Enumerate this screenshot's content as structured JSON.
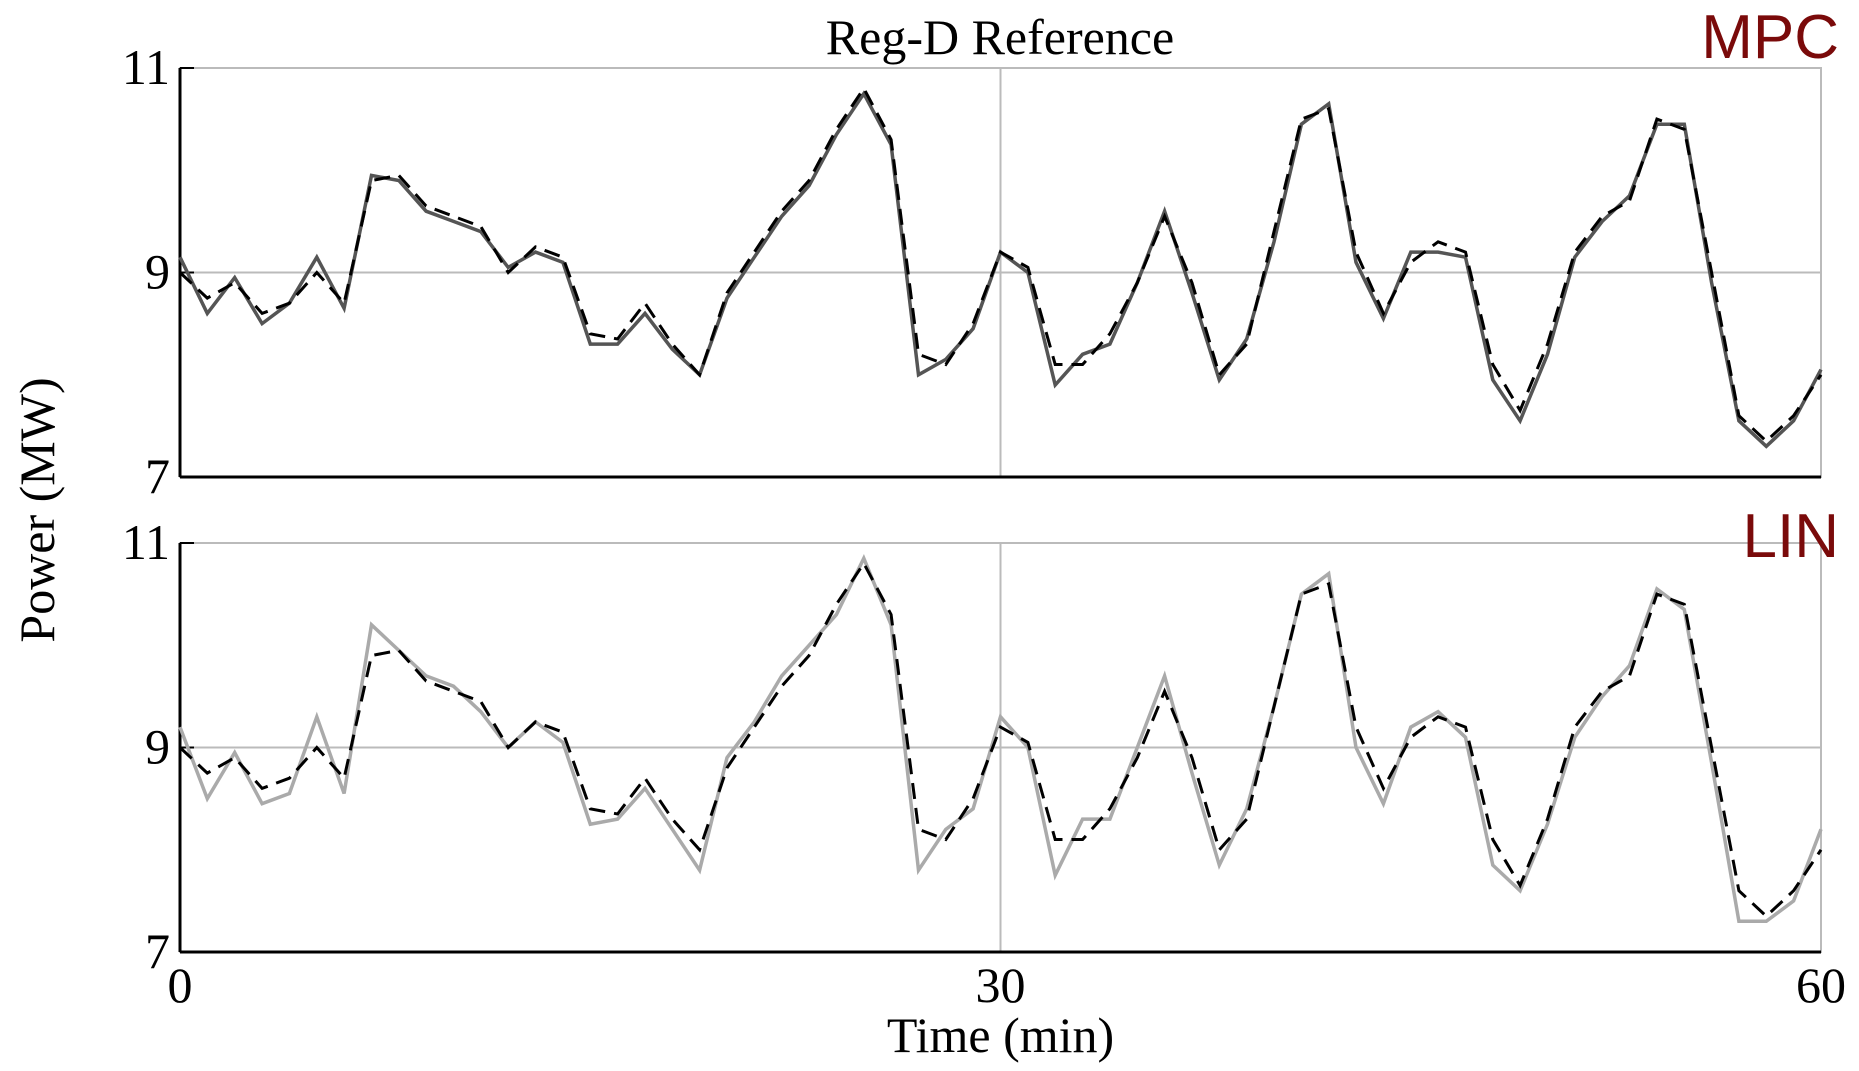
{
  "chart_data": [
    {
      "type": "line",
      "title": "Reg-D Reference",
      "label": "MPC",
      "label_color": "#7a0a0a",
      "y_label": "Power (MW)",
      "x": [
        0,
        1,
        2,
        3,
        4,
        5,
        6,
        7,
        8,
        9,
        10,
        11,
        12,
        13,
        14,
        15,
        16,
        17,
        18,
        19,
        20,
        21,
        22,
        23,
        24,
        25,
        26,
        27,
        28,
        29,
        30,
        31,
        32,
        33,
        34,
        35,
        36,
        37,
        38,
        39,
        40,
        41,
        42,
        43,
        44,
        45,
        46,
        47,
        48,
        49,
        50,
        51,
        52,
        53,
        54,
        55,
        56,
        57,
        58,
        59,
        60
      ],
      "xlim": [
        0,
        60
      ],
      "xticks": [
        0,
        30,
        60
      ],
      "ylim": [
        7,
        11
      ],
      "yticks": [
        7,
        9,
        11
      ],
      "grid": true,
      "series": [
        {
          "color": "#555555",
          "style": "solid",
          "values": [
            9.15,
            8.6,
            8.95,
            8.5,
            8.7,
            9.15,
            8.65,
            9.95,
            9.9,
            9.6,
            9.5,
            9.4,
            9.05,
            9.2,
            9.1,
            8.3,
            8.3,
            8.6,
            8.25,
            8.0,
            8.75,
            9.15,
            9.55,
            9.85,
            10.35,
            10.75,
            10.25,
            8.0,
            8.15,
            8.45,
            9.2,
            9.0,
            7.9,
            8.2,
            8.3,
            8.9,
            9.6,
            8.8,
            7.95,
            8.35,
            9.3,
            10.45,
            10.65,
            9.1,
            8.55,
            9.2,
            9.2,
            9.15,
            7.95,
            7.55,
            8.2,
            9.15,
            9.5,
            9.75,
            10.45,
            10.45,
            8.9,
            7.55,
            7.3,
            7.55,
            8.05
          ]
        },
        {
          "color": "#000000",
          "style": "dashed",
          "values": [
            9.0,
            8.75,
            8.9,
            8.6,
            8.7,
            9.0,
            8.7,
            9.9,
            9.95,
            9.65,
            9.55,
            9.45,
            9.0,
            9.25,
            9.15,
            8.4,
            8.35,
            8.7,
            8.3,
            8.0,
            8.8,
            9.2,
            9.6,
            9.9,
            10.4,
            10.8,
            10.3,
            8.2,
            8.1,
            8.5,
            9.2,
            9.05,
            8.1,
            8.1,
            8.4,
            8.9,
            9.55,
            8.9,
            8.0,
            8.3,
            9.4,
            10.5,
            10.6,
            9.2,
            8.6,
            9.1,
            9.3,
            9.2,
            8.1,
            7.65,
            8.3,
            9.2,
            9.55,
            9.7,
            10.5,
            10.4,
            9.0,
            7.6,
            7.35,
            7.6,
            8.0
          ]
        }
      ]
    },
    {
      "type": "line",
      "label": "LIN",
      "label_color": "#7a0a0a",
      "x_label": "Time (min)",
      "x": [
        0,
        1,
        2,
        3,
        4,
        5,
        6,
        7,
        8,
        9,
        10,
        11,
        12,
        13,
        14,
        15,
        16,
        17,
        18,
        19,
        20,
        21,
        22,
        23,
        24,
        25,
        26,
        27,
        28,
        29,
        30,
        31,
        32,
        33,
        34,
        35,
        36,
        37,
        38,
        39,
        40,
        41,
        42,
        43,
        44,
        45,
        46,
        47,
        48,
        49,
        50,
        51,
        52,
        53,
        54,
        55,
        56,
        57,
        58,
        59,
        60
      ],
      "xlim": [
        0,
        60
      ],
      "xticks": [
        0,
        30,
        60
      ],
      "ylim": [
        7,
        11
      ],
      "yticks": [
        7,
        9,
        11
      ],
      "grid": true,
      "series": [
        {
          "color": "#aaaaaa",
          "style": "solid",
          "values": [
            9.2,
            8.5,
            8.95,
            8.45,
            8.55,
            9.3,
            8.55,
            10.2,
            9.95,
            9.7,
            9.6,
            9.35,
            9.0,
            9.25,
            9.05,
            8.25,
            8.3,
            8.6,
            8.2,
            7.8,
            8.9,
            9.25,
            9.7,
            10.0,
            10.3,
            10.85,
            10.2,
            7.8,
            8.2,
            8.4,
            9.3,
            9.0,
            7.75,
            8.3,
            8.3,
            9.0,
            9.7,
            8.75,
            7.85,
            8.4,
            9.4,
            10.5,
            10.7,
            9.0,
            8.45,
            9.2,
            9.35,
            9.1,
            7.85,
            7.6,
            8.25,
            9.1,
            9.5,
            9.8,
            10.55,
            10.35,
            8.85,
            7.3,
            7.3,
            7.5,
            8.2
          ]
        },
        {
          "color": "#000000",
          "style": "dashed",
          "values": [
            9.0,
            8.75,
            8.9,
            8.6,
            8.7,
            9.0,
            8.7,
            9.9,
            9.95,
            9.65,
            9.55,
            9.45,
            9.0,
            9.25,
            9.15,
            8.4,
            8.35,
            8.7,
            8.3,
            8.0,
            8.8,
            9.2,
            9.6,
            9.9,
            10.4,
            10.8,
            10.3,
            8.2,
            8.1,
            8.5,
            9.2,
            9.05,
            8.1,
            8.1,
            8.4,
            8.9,
            9.55,
            8.9,
            8.0,
            8.3,
            9.4,
            10.5,
            10.6,
            9.2,
            8.6,
            9.1,
            9.3,
            9.2,
            8.1,
            7.65,
            8.3,
            9.2,
            9.55,
            9.7,
            10.5,
            10.4,
            9.0,
            7.6,
            7.35,
            7.6,
            8.0
          ]
        }
      ]
    }
  ]
}
